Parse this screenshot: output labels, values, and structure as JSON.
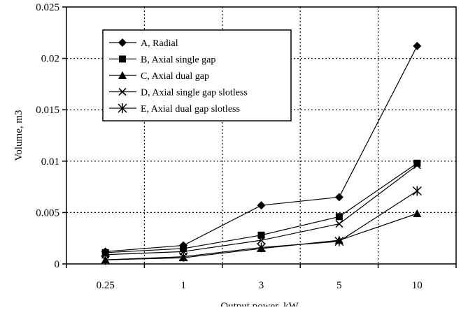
{
  "chart_data": {
    "type": "line",
    "title": "",
    "xlabel": "Output power, kW",
    "ylabel": "Volume, m3",
    "categories": [
      "0.25",
      "1",
      "3",
      "5",
      "10"
    ],
    "ylim": [
      0,
      0.025
    ],
    "yticks": [
      "0",
      "0.005",
      "0.01",
      "0.015",
      "0.02",
      "0.025"
    ],
    "grid": true,
    "legend_position": "top-left inside plot",
    "series": [
      {
        "name": "A, Radial",
        "marker": "diamond",
        "values": [
          0.0012,
          0.0018,
          0.0057,
          0.0065,
          0.0212
        ]
      },
      {
        "name": "B, Axial single gap",
        "marker": "square",
        "values": [
          0.0011,
          0.0015,
          0.0028,
          0.0046,
          0.0098
        ]
      },
      {
        "name": "C, Axial dual gap",
        "marker": "triangle",
        "values": [
          0.0004,
          0.0006,
          0.0015,
          0.0023,
          0.0049
        ]
      },
      {
        "name": "D, Axial single gap slotless",
        "marker": "x",
        "values": [
          0.0009,
          0.0012,
          0.0023,
          0.0039,
          0.0096
        ]
      },
      {
        "name": "E, Axial dual gap slotless",
        "marker": "asterisk",
        "values": [
          0.0004,
          0.0007,
          0.0016,
          0.0022,
          0.0071
        ]
      }
    ],
    "colors": {
      "line": "#000000",
      "grid": "#000000",
      "background": "#ffffff"
    }
  }
}
